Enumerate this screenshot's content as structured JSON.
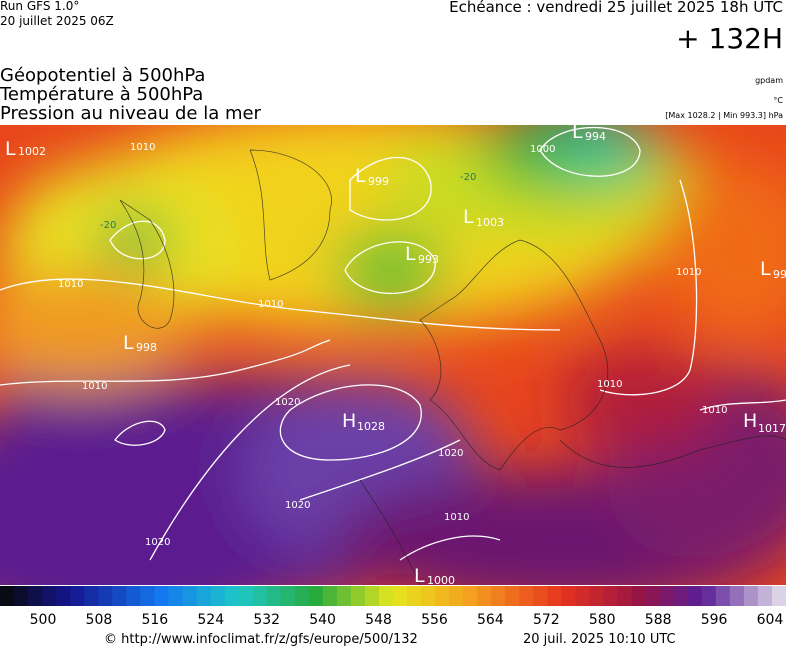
{
  "header": {
    "run": "Run GFS 1.0°",
    "run_date": "20 juillet 2025 06Z",
    "echeance": "Echéance : vendredi 25 juillet 2025 18h UTC",
    "lead": "+ 132H"
  },
  "titles": [
    "Géopotentiel à 500hPa",
    "Température à 500hPa",
    "Pression au niveau de la mer"
  ],
  "units": {
    "geopotential": "gpdam",
    "temperature": "°C",
    "pressure": "[Max 1028.2 | Min 993.3] hPa"
  },
  "centers": [
    {
      "letter": "L",
      "value": "1002"
    },
    {
      "letter": "L",
      "value": "999"
    },
    {
      "letter": "L",
      "value": "994"
    },
    {
      "letter": "L",
      "value": "1003"
    },
    {
      "letter": "L",
      "value": "993"
    },
    {
      "letter": "L",
      "value": "99"
    },
    {
      "letter": "L",
      "value": "998"
    },
    {
      "letter": "H",
      "value": "1028"
    },
    {
      "letter": "H",
      "value": "1017"
    },
    {
      "letter": "L",
      "value": "1000"
    }
  ],
  "isobar_labels": [
    "1010",
    "1010",
    "1010",
    "1010",
    "1020",
    "1020",
    "1020",
    "1020",
    "1010",
    "1010",
    "1010",
    "1010",
    "1000",
    "-20",
    "-20"
  ],
  "colorbar": {
    "ticks": [
      500,
      508,
      516,
      524,
      532,
      540,
      548,
      556,
      564,
      572,
      580,
      588,
      596,
      604
    ]
  },
  "footer": {
    "url": "© http://www.infoclimat.fr/z/gfs/europe/500/132",
    "date": "20 juil. 2025 10:10 UTC"
  }
}
